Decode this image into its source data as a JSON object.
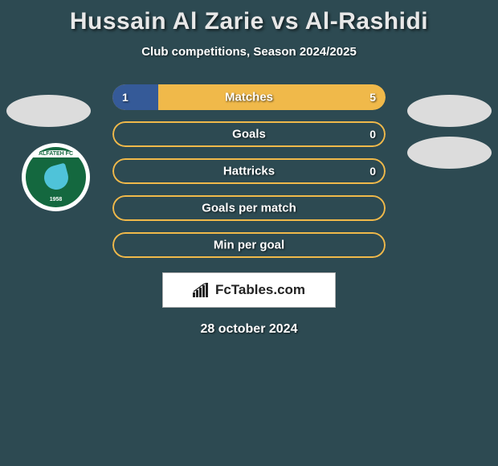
{
  "title": "Hussain Al Zarie vs Al-Rashidi",
  "subtitle": "Club competitions, Season 2024/2025",
  "date": "28 october 2024",
  "brand": {
    "name": "FcTables.com",
    "icon": "bars-icon"
  },
  "colors": {
    "background": "#2d4a52",
    "avatar": "#dcdcdc",
    "text": "#ffffff",
    "title": "#e8e8e8",
    "left_fill": "#355a98",
    "accent_border": "#f0b94a",
    "club_primary": "#14683f",
    "club_accent": "#4fc3d9"
  },
  "club_logo": {
    "text_top": "ALFATEH FC",
    "year": "1958"
  },
  "bars": [
    {
      "label": "Matches",
      "left_value": "1",
      "right_value": "5",
      "left_pct": 16.7,
      "right_pct": 83.3,
      "left_color": "#355a98",
      "track_color": "#f0b94a",
      "border_color": "#f0b94a",
      "show_values": true
    },
    {
      "label": "Goals",
      "left_value": "",
      "right_value": "0",
      "left_pct": 0,
      "right_pct": 0,
      "left_color": "#355a98",
      "track_color": "transparent",
      "border_color": "#f0b94a",
      "show_values": true
    },
    {
      "label": "Hattricks",
      "left_value": "",
      "right_value": "0",
      "left_pct": 0,
      "right_pct": 0,
      "left_color": "#355a98",
      "track_color": "transparent",
      "border_color": "#f0b94a",
      "show_values": true
    },
    {
      "label": "Goals per match",
      "left_value": "",
      "right_value": "",
      "left_pct": 0,
      "right_pct": 0,
      "left_color": "#355a98",
      "track_color": "transparent",
      "border_color": "#f0b94a",
      "show_values": false
    },
    {
      "label": "Min per goal",
      "left_value": "",
      "right_value": "",
      "left_pct": 0,
      "right_pct": 0,
      "left_color": "#355a98",
      "track_color": "transparent",
      "border_color": "#f0b94a",
      "show_values": false
    }
  ]
}
